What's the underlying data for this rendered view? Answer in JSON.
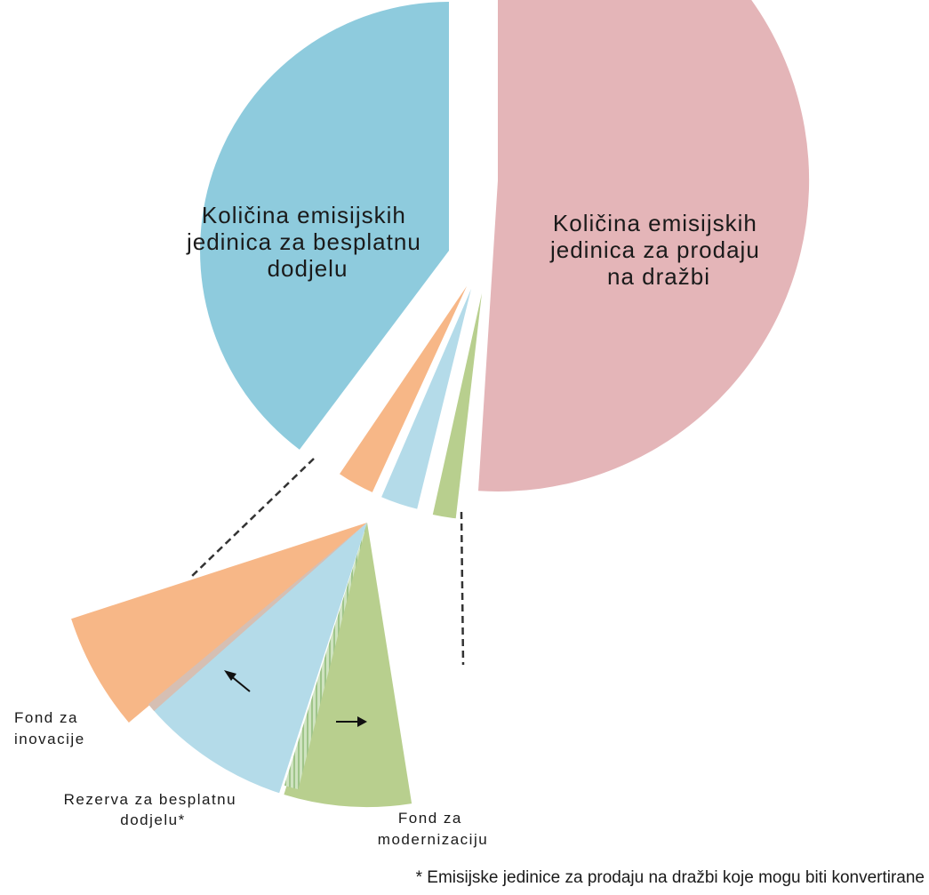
{
  "chart_data": {
    "type": "pie",
    "title": "",
    "slices": [
      {
        "key": "auction",
        "label_lines": [
          "Količina emisijskih",
          "jedinica za prodaju",
          "na dražbi"
        ],
        "value": 51,
        "color": "#e4b5b8"
      },
      {
        "key": "free",
        "label_lines": [
          "Količina emisijskih",
          "jedinica za besplatnu",
          "dodjelu"
        ],
        "value": 41,
        "color": "#8ecbdd"
      },
      {
        "key": "innovation",
        "label_lines": [
          "Fond za",
          "inovacije"
        ],
        "value": 3,
        "color": "#f7b787"
      },
      {
        "key": "reserve",
        "label_lines": [
          "Rezerva za besplatnu",
          "dodjelu*"
        ],
        "value": 3,
        "color": "#b4dbe9"
      },
      {
        "key": "modernisation",
        "label_lines": [
          "Fond za",
          "modernizaciju"
        ],
        "value": 2,
        "color": "#b8cf8e"
      }
    ],
    "legend": "none",
    "footnote": "* Emisijske jedinice za prodaju na dražbi koje mogu biti konvertirane"
  }
}
